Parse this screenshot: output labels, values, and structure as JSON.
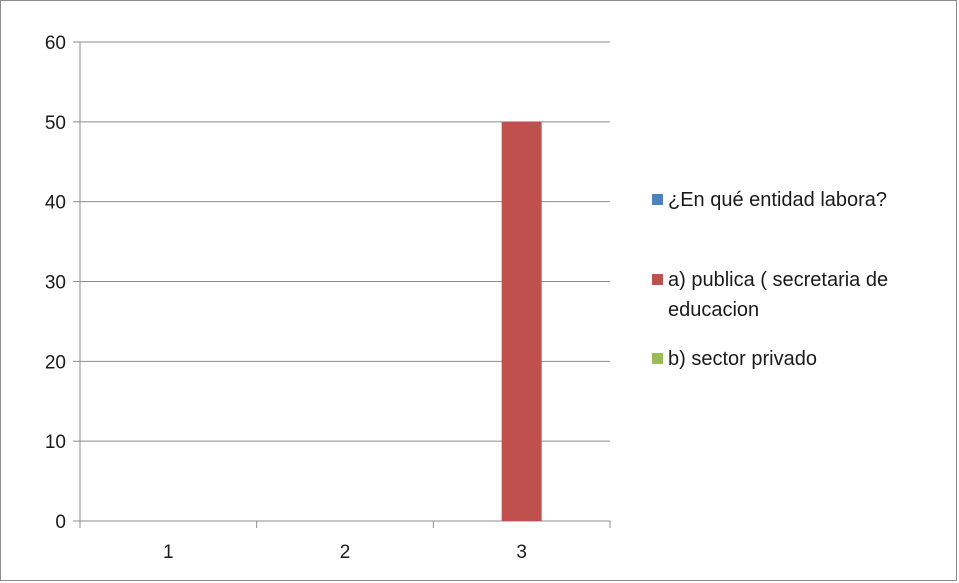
{
  "chart_data": {
    "type": "bar",
    "categories": [
      "1",
      "2",
      "3"
    ],
    "series": [
      {
        "name": "¿En qué entidad labora?",
        "color": "#4f81bd",
        "values": [
          0,
          0,
          0
        ]
      },
      {
        "name": "a) publica ( secretaria de educacion",
        "color": "#c0504d",
        "values": [
          0,
          0,
          50
        ]
      },
      {
        "name": "b) sector privado",
        "color": "#9bbb59",
        "values": [
          0,
          0,
          0
        ]
      }
    ],
    "ylim": [
      0,
      60
    ],
    "yticks": [
      "0",
      "10",
      "20",
      "30",
      "40",
      "50",
      "60"
    ],
    "grid": true,
    "legend_position": "right",
    "legend_lines": [
      [
        "¿En qué entidad labora?"
      ],
      [
        "a) publica ( secretaria de",
        "educacion"
      ],
      [
        "b) sector privado"
      ]
    ]
  }
}
